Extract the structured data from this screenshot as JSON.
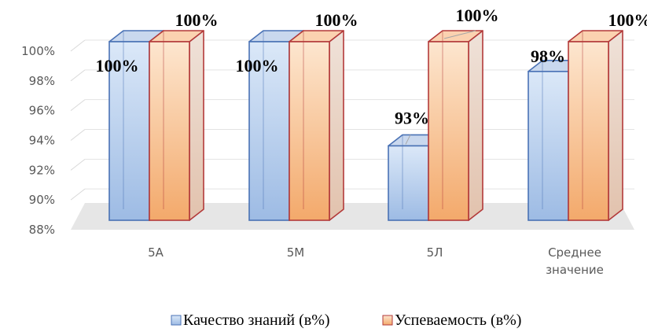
{
  "chart_data": {
    "type": "bar",
    "categories": [
      [
        "5А"
      ],
      [
        "5М"
      ],
      [
        "5Л"
      ],
      [
        "Среднее",
        "значение"
      ]
    ],
    "series": [
      {
        "name": "Качество знаний (в%)",
        "values": [
          100,
          100,
          93,
          98
        ],
        "labels": [
          "100%",
          "100%",
          "93%",
          "98%"
        ],
        "color": "#4a72b5"
      },
      {
        "name": "Успеваемость (в%)",
        "values": [
          100,
          100,
          100,
          100
        ],
        "labels": [
          "100%",
          "100%",
          "100%",
          "100%"
        ],
        "color": "#b33a3a"
      }
    ],
    "ylim": [
      88,
      100
    ],
    "yticks": [
      "88%",
      "90%",
      "92%",
      "94%",
      "96%",
      "98%",
      "100%"
    ],
    "ytick_values": [
      88,
      90,
      92,
      94,
      96,
      98,
      100
    ],
    "grid": true,
    "legend": "bottom",
    "style": "3d-column"
  }
}
